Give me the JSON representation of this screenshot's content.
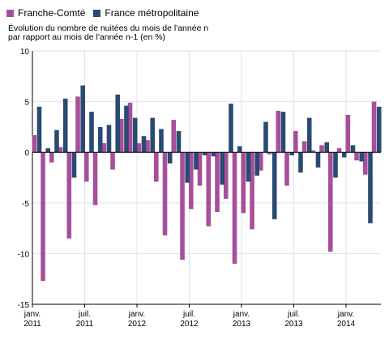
{
  "chart_data": {
    "type": "bar",
    "title": "",
    "subtitle": [
      "Évolution du nombre de nuitées du mois de l'année n",
      "par rapport au mois de l'année n-1 (en %)"
    ],
    "xlabel": "",
    "ylabel": "",
    "ylim": [
      -15,
      10
    ],
    "yticks": [
      10,
      5,
      0,
      -5,
      -10,
      -15
    ],
    "grid": true,
    "legend_position": "top-left",
    "x_tick_labels": [
      {
        "index": 0,
        "line1": "janv.",
        "line2": "2011"
      },
      {
        "index": 6,
        "line1": "juil.",
        "line2": "2011"
      },
      {
        "index": 12,
        "line1": "janv.",
        "line2": "2012"
      },
      {
        "index": 18,
        "line1": "juil.",
        "line2": "2012"
      },
      {
        "index": 24,
        "line1": "janv.",
        "line2": "2013"
      },
      {
        "index": 30,
        "line1": "juil.",
        "line2": "2013"
      },
      {
        "index": 36,
        "line1": "janv.",
        "line2": "2014"
      }
    ],
    "series": [
      {
        "name": "Franche-Comté",
        "color": "#a84e9a",
        "values": [
          1.7,
          -12.7,
          -1.0,
          0.5,
          -8.5,
          5.5,
          -2.9,
          -5.2,
          0.9,
          -1.7,
          3.3,
          4.9,
          0.9,
          1.2,
          -2.9,
          -8.2,
          3.2,
          -10.6,
          -5.6,
          -3.3,
          -7.3,
          -5.9,
          -4.6,
          -11.0,
          -6.0,
          -7.6,
          -1.8,
          -0.2,
          4.1,
          -3.3,
          2.1,
          1.1,
          0.2,
          0.7,
          -9.8,
          0.4,
          3.7,
          -0.8,
          -2.2,
          5.0
        ]
      },
      {
        "name": "France métropolitaine",
        "color": "#2a4a72",
        "values": [
          4.5,
          0.4,
          2.2,
          5.3,
          -2.5,
          6.6,
          4.0,
          2.5,
          2.7,
          5.7,
          4.6,
          3.4,
          1.6,
          3.4,
          2.3,
          -1.1,
          2.1,
          -3.0,
          -1.7,
          -0.3,
          -0.4,
          -3.2,
          4.8,
          0.6,
          -2.9,
          -2.3,
          3.0,
          -6.6,
          4.0,
          -0.3,
          -2.0,
          3.4,
          -1.5,
          1.0,
          -2.5,
          -0.5,
          0.7,
          -0.9,
          -7.0,
          4.5
        ]
      }
    ]
  }
}
